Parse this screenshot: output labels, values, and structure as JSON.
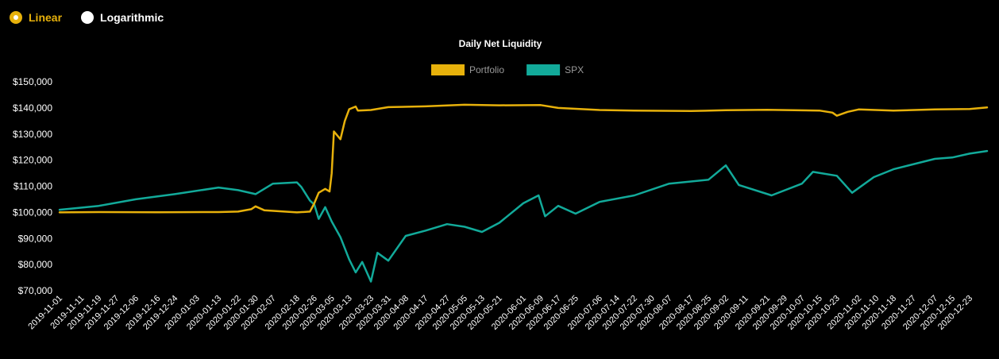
{
  "scale_toggle": {
    "options": [
      {
        "label": "Linear",
        "selected": true
      },
      {
        "label": "Logarithmic",
        "selected": false
      }
    ],
    "accent_color": "#e7b10b"
  },
  "chart_data": {
    "type": "line",
    "title": "Daily Net Liquidity",
    "xlabel": "",
    "ylabel": "",
    "ylim": [
      70000,
      150000
    ],
    "grid": false,
    "legend_position": "top-center",
    "y_ticks": [
      "$70,000",
      "$80,000",
      "$90,000",
      "$100,000",
      "$110,000",
      "$120,000",
      "$130,000",
      "$140,000",
      "$150,000"
    ],
    "y_tick_values": [
      70000,
      80000,
      90000,
      100000,
      110000,
      120000,
      130000,
      140000,
      150000
    ],
    "x_ticks": [
      "2019-11-01",
      "2019-11-11",
      "2019-11-19",
      "2019-11-27",
      "2019-12-06",
      "2019-12-16",
      "2019-12-24",
      "2020-01-03",
      "2020-01-13",
      "2020-01-22",
      "2020-01-30",
      "2020-02-07",
      "2020-02-18",
      "2020-02-26",
      "2020-03-05",
      "2020-03-13",
      "2020-03-23",
      "2020-03-31",
      "2020-04-08",
      "2020-04-17",
      "2020-04-27",
      "2020-05-05",
      "2020-05-13",
      "2020-05-21",
      "2020-06-01",
      "2020-06-09",
      "2020-06-17",
      "2020-06-25",
      "2020-07-06",
      "2020-07-14",
      "2020-07-22",
      "2020-07-30",
      "2020-08-07",
      "2020-08-17",
      "2020-08-25",
      "2020-09-02",
      "2020-09-11",
      "2020-09-21",
      "2020-09-29",
      "2020-10-07",
      "2020-10-15",
      "2020-10-23",
      "2020-11-02",
      "2020-11-10",
      "2020-11-18",
      "2020-11-27",
      "2020-12-07",
      "2020-12-15",
      "2020-12-23"
    ],
    "series": [
      {
        "name": "Portfolio",
        "color": "#e7b10b",
        "x": [
          "2019-11-01",
          "2019-11-19",
          "2019-12-16",
          "2020-01-13",
          "2020-01-22",
          "2020-01-28",
          "2020-01-30",
          "2020-02-03",
          "2020-02-18",
          "2020-02-24",
          "2020-02-26",
          "2020-02-28",
          "2020-03-02",
          "2020-03-04",
          "2020-03-05",
          "2020-03-06",
          "2020-03-09",
          "2020-03-11",
          "2020-03-13",
          "2020-03-16",
          "2020-03-17",
          "2020-03-23",
          "2020-03-31",
          "2020-04-17",
          "2020-05-05",
          "2020-05-21",
          "2020-06-09",
          "2020-06-17",
          "2020-07-06",
          "2020-07-22",
          "2020-08-17",
          "2020-09-02",
          "2020-09-21",
          "2020-10-15",
          "2020-10-21",
          "2020-10-23",
          "2020-10-28",
          "2020-11-02",
          "2020-11-18",
          "2020-12-07",
          "2020-12-23",
          "2020-12-31"
        ],
        "values": [
          100000,
          100100,
          100050,
          100100,
          100300,
          101200,
          102300,
          100800,
          100000,
          100300,
          103500,
          107500,
          109000,
          108000,
          115000,
          131000,
          128000,
          135000,
          139500,
          140500,
          139000,
          139200,
          140300,
          140600,
          141200,
          141000,
          141100,
          140000,
          139200,
          139000,
          138800,
          139100,
          139300,
          139000,
          138200,
          137000,
          138500,
          139400,
          139000,
          139400,
          139600,
          140200
        ]
      },
      {
        "name": "SPX",
        "color": "#12aa9a",
        "x": [
          "2019-11-01",
          "2019-11-19",
          "2019-12-06",
          "2019-12-24",
          "2020-01-13",
          "2020-01-22",
          "2020-01-30",
          "2020-02-07",
          "2020-02-18",
          "2020-02-20",
          "2020-02-24",
          "2020-02-26",
          "2020-02-28",
          "2020-03-02",
          "2020-03-05",
          "2020-03-09",
          "2020-03-13",
          "2020-03-16",
          "2020-03-19",
          "2020-03-23",
          "2020-03-26",
          "2020-03-31",
          "2020-04-08",
          "2020-04-17",
          "2020-04-27",
          "2020-05-05",
          "2020-05-13",
          "2020-05-21",
          "2020-06-01",
          "2020-06-08",
          "2020-06-11",
          "2020-06-17",
          "2020-06-25",
          "2020-07-06",
          "2020-07-22",
          "2020-08-07",
          "2020-08-25",
          "2020-09-02",
          "2020-09-08",
          "2020-09-23",
          "2020-10-07",
          "2020-10-12",
          "2020-10-23",
          "2020-10-30",
          "2020-11-09",
          "2020-11-18",
          "2020-12-07",
          "2020-12-15",
          "2020-12-23",
          "2020-12-31"
        ],
        "values": [
          101000,
          102500,
          105000,
          107000,
          109500,
          108500,
          107000,
          111000,
          111500,
          109800,
          104500,
          103000,
          97500,
          102000,
          96500,
          90500,
          82000,
          77000,
          81000,
          73500,
          84500,
          81500,
          91000,
          93000,
          95500,
          94500,
          92500,
          96000,
          103500,
          106500,
          98500,
          102500,
          99500,
          104000,
          106500,
          111000,
          112500,
          118000,
          110500,
          106500,
          111000,
          115500,
          114000,
          107500,
          113500,
          116500,
          120500,
          121000,
          122500,
          123500
        ]
      }
    ]
  }
}
